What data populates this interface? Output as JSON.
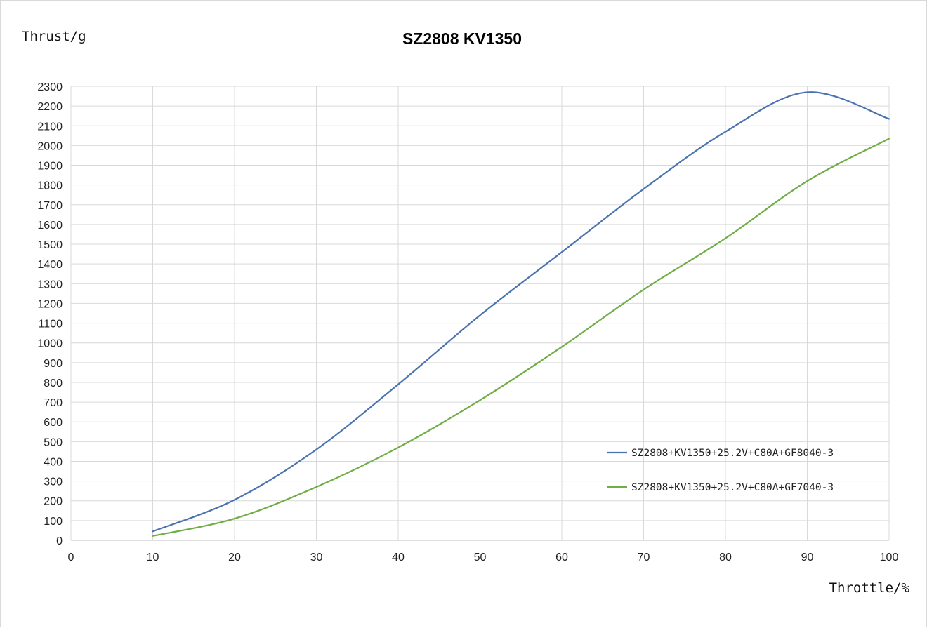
{
  "chart_data": {
    "type": "line",
    "title": "SZ2808 KV1350",
    "xlabel": "Throttle/%",
    "ylabel": "Thrust/g",
    "xlim": [
      0,
      100
    ],
    "ylim": [
      0,
      2300
    ],
    "xticks": [
      0,
      10,
      20,
      30,
      40,
      50,
      60,
      70,
      80,
      90,
      100
    ],
    "yticks": [
      0,
      100,
      200,
      300,
      400,
      500,
      600,
      700,
      800,
      900,
      1000,
      1100,
      1200,
      1300,
      1400,
      1500,
      1600,
      1700,
      1800,
      1900,
      2000,
      2100,
      2200,
      2300
    ],
    "grid": true,
    "legend_position": "right",
    "series": [
      {
        "name": "SZ2808+KV1350+25.2V+C80A+GF8040-3",
        "color": "#4a72b0",
        "x": [
          10,
          20,
          30,
          40,
          50,
          60,
          70,
          80,
          90,
          100
        ],
        "y": [
          45,
          205,
          460,
          790,
          1140,
          1460,
          1780,
          2070,
          2270,
          2135
        ]
      },
      {
        "name": "SZ2808+KV1350+25.2V+C80A+GF7040-3",
        "color": "#70ad47",
        "x": [
          10,
          20,
          30,
          40,
          50,
          60,
          70,
          80,
          90,
          100
        ],
        "y": [
          22,
          110,
          270,
          470,
          710,
          980,
          1270,
          1530,
          1820,
          2035
        ]
      }
    ]
  }
}
